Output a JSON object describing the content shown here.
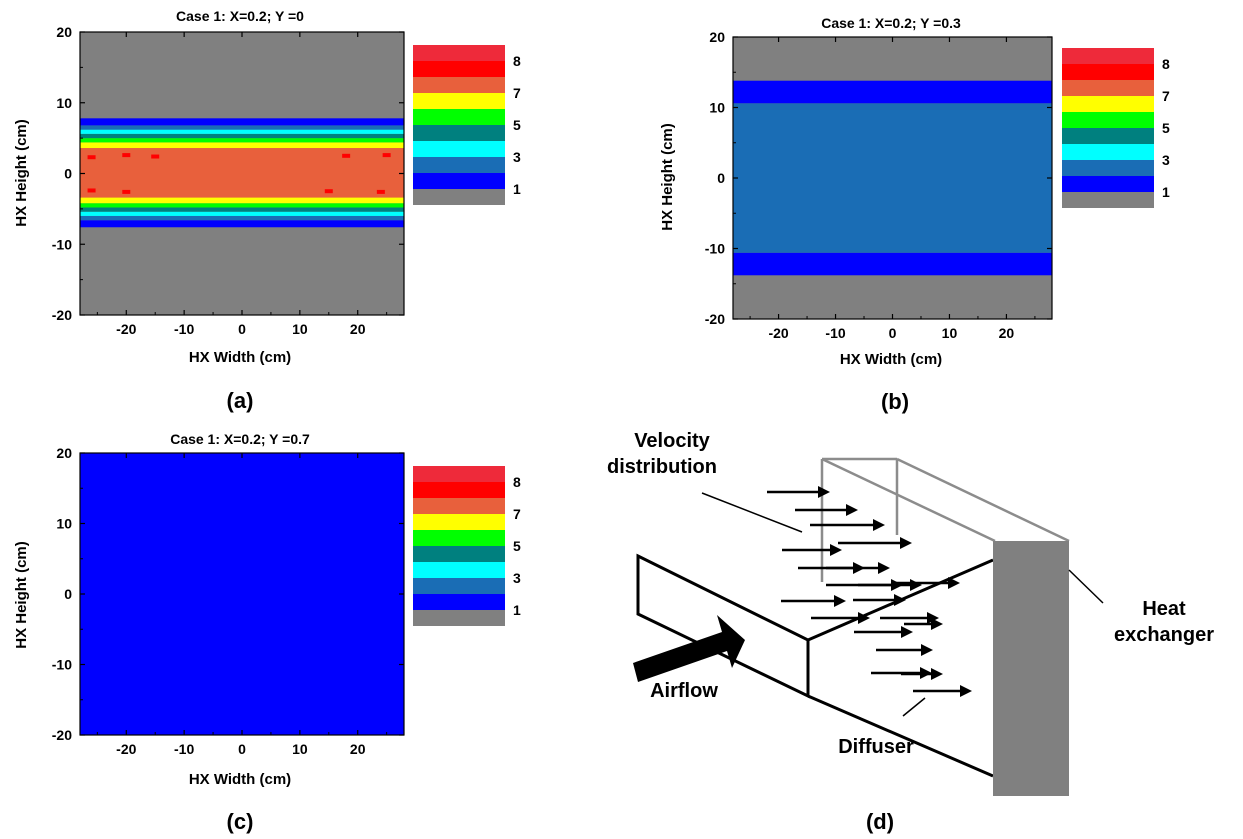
{
  "chart_data": [
    {
      "panel": "(a)",
      "type": "heatmap",
      "title": "Case 1: X=0.2; Y =0",
      "xlabel": "HX Width (cm)",
      "ylabel": "HX Height (cm)",
      "xlim": [
        -28,
        28
      ],
      "ylim": [
        -20,
        20
      ],
      "xticks": [
        -20,
        -10,
        0,
        10,
        20
      ],
      "yticks": [
        -20,
        -10,
        0,
        10,
        20
      ],
      "legend_labels": [
        "8",
        "7",
        "5",
        "3",
        "1"
      ],
      "legend_position": "right",
      "background_level": 0,
      "bands": [
        {
          "y0": -7.6,
          "y1": -6.6,
          "level": 1
        },
        {
          "y0": -6.6,
          "y1": -6.0,
          "level": 2
        },
        {
          "y0": -6.0,
          "y1": -5.4,
          "level": 3
        },
        {
          "y0": -5.4,
          "y1": -4.8,
          "level": 4
        },
        {
          "y0": -4.8,
          "y1": -4.2,
          "level": 5
        },
        {
          "y0": -4.2,
          "y1": -3.4,
          "level": 6
        },
        {
          "y0": -3.4,
          "y1": 3.6,
          "level": 7
        },
        {
          "y0": 3.6,
          "y1": 4.4,
          "level": 6
        },
        {
          "y0": 4.4,
          "y1": 5.0,
          "level": 5
        },
        {
          "y0": 5.0,
          "y1": 5.6,
          "level": 4
        },
        {
          "y0": 5.6,
          "y1": 6.2,
          "level": 3
        },
        {
          "y0": 6.2,
          "y1": 6.8,
          "level": 2
        },
        {
          "y0": 6.8,
          "y1": 7.8,
          "level": 1
        }
      ],
      "specks": [
        {
          "x": -26,
          "y": 2.3
        },
        {
          "x": -20,
          "y": 2.6
        },
        {
          "x": -15,
          "y": 2.4
        },
        {
          "x": 18,
          "y": 2.5
        },
        {
          "x": 25,
          "y": 2.6
        },
        {
          "x": -26,
          "y": -2.4
        },
        {
          "x": -20,
          "y": -2.6
        },
        {
          "x": 15,
          "y": -2.5
        },
        {
          "x": 24,
          "y": -2.6
        }
      ]
    },
    {
      "panel": "(b)",
      "type": "heatmap",
      "title": "Case 1: X=0.2; Y =0.3",
      "xlabel": "HX Width (cm)",
      "ylabel": "HX Height (cm)",
      "xlim": [
        -28,
        28
      ],
      "ylim": [
        -20,
        20
      ],
      "xticks": [
        -20,
        -10,
        0,
        10,
        20
      ],
      "yticks": [
        -20,
        -10,
        0,
        10,
        20
      ],
      "legend_labels": [
        "8",
        "7",
        "5",
        "3",
        "1"
      ],
      "legend_position": "right",
      "background_level": 0,
      "bands": [
        {
          "y0": -13.8,
          "y1": -10.6,
          "level": 1
        },
        {
          "y0": -10.6,
          "y1": 10.6,
          "level": 2
        },
        {
          "y0": 10.6,
          "y1": 13.8,
          "level": 1
        }
      ],
      "specks": []
    },
    {
      "panel": "(c)",
      "type": "heatmap",
      "title": "Case 1: X=0.2; Y =0.7",
      "xlabel": "HX Width (cm)",
      "ylabel": "HX Height (cm)",
      "xlim": [
        -28,
        28
      ],
      "ylim": [
        -20,
        20
      ],
      "xticks": [
        -20,
        -10,
        0,
        10,
        20
      ],
      "yticks": [
        -20,
        -10,
        0,
        10,
        20
      ],
      "legend_labels": [
        "8",
        "7",
        "5",
        "3",
        "1"
      ],
      "legend_position": "right",
      "background_level": 1,
      "bands": [],
      "specks": []
    }
  ],
  "colormap": [
    "#808080",
    "#0000ff",
    "#1a6db5",
    "#00ffff",
    "#00807f",
    "#00ff00",
    "#ffff00",
    "#e8603c",
    "#ff0000",
    "#ee2a3a"
  ],
  "labels": {
    "a": "(a)",
    "b": "(b)",
    "c": "(c)",
    "d": "(d)"
  },
  "diagram": {
    "velocity": "Velocity",
    "distribution": "distribution",
    "heat": "Heat",
    "exchanger": "exchanger",
    "airflow": "Airflow",
    "diffuser": "Diffuser"
  }
}
